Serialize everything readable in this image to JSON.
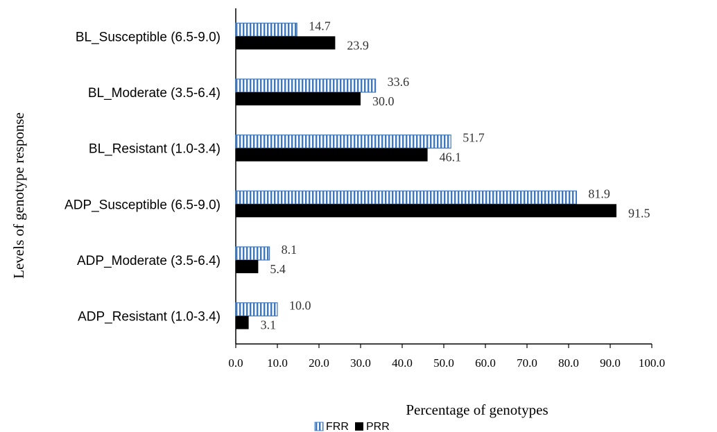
{
  "chart_data": {
    "type": "bar",
    "orientation": "horizontal",
    "categories": [
      "BL_Susceptible (6.5-9.0)",
      "BL_Moderate (3.5-6.4)",
      "BL_Resistant (1.0-3.4)",
      "ADP_Susceptible (6.5-9.0)",
      "ADP_Moderate (3.5-6.4)",
      "ADP_Resistant (1.0-3.4)"
    ],
    "series": [
      {
        "name": "FRR",
        "values": [
          14.7,
          33.6,
          51.7,
          81.9,
          8.1,
          10.0
        ],
        "labels": [
          "14.7",
          "33.6",
          "51.7",
          "81.9",
          "8.1",
          "10.0"
        ],
        "pattern": "vertical-stripes",
        "color": "#3a78c4"
      },
      {
        "name": "PRR",
        "values": [
          23.9,
          30.0,
          46.1,
          91.5,
          5.4,
          3.1
        ],
        "labels": [
          "23.9",
          "30.0",
          "46.1",
          "91.5",
          "5.4",
          "3.1"
        ],
        "pattern": "solid",
        "color": "#000000"
      }
    ],
    "xlabel": "Percentage of genotypes",
    "ylabel": "Levels of genotype response",
    "xlim": [
      0,
      100
    ],
    "xticks": [
      "0.0",
      "10.0",
      "20.0",
      "30.0",
      "40.0",
      "50.0",
      "60.0",
      "70.0",
      "80.0",
      "90.0",
      "100.0"
    ],
    "grid": false,
    "legend_position": "bottom-center"
  }
}
